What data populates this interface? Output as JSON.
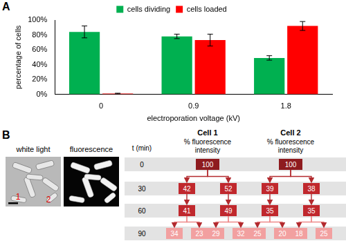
{
  "panel_labels": [
    "A",
    "B"
  ],
  "chart_data": {
    "type": "bar",
    "categories": [
      "0",
      "0.9",
      "1.8"
    ],
    "x_label": "electroporation voltage (kV)",
    "y_label": "percentage of cells",
    "ylim": [
      0,
      100
    ],
    "yticks": [
      {
        "value": 0,
        "label": "0%"
      },
      {
        "value": 20,
        "label": "20%"
      },
      {
        "value": 40,
        "label": "40%"
      },
      {
        "value": 60,
        "label": "60%"
      },
      {
        "value": 80,
        "label": "80%"
      },
      {
        "value": 100,
        "label": "100%"
      }
    ],
    "series": [
      {
        "name": "cells dividing",
        "color": "#00b050",
        "values": [
          84,
          78,
          49
        ],
        "errors": [
          8,
          3,
          3
        ]
      },
      {
        "name": "cells loaded",
        "color": "#ff0000",
        "values": [
          1,
          73,
          92
        ],
        "errors": [
          0.5,
          8,
          6
        ]
      }
    ],
    "grid": false,
    "legend": "top"
  },
  "panel_b": {
    "images": [
      {
        "caption": "white light",
        "cell_markers": [
          "1",
          "2"
        ]
      },
      {
        "caption": "fluorescence"
      }
    ],
    "time_header": "t (min)",
    "value_header": "% fluorescence intensity",
    "times": [
      0,
      30,
      60,
      90
    ],
    "cells": [
      {
        "name": "Cell 1",
        "levels": [
          [
            100
          ],
          [
            42,
            52
          ],
          [
            41,
            49
          ],
          [
            34,
            23,
            29,
            32
          ]
        ]
      },
      {
        "name": "Cell 2",
        "levels": [
          [
            100
          ],
          [
            39,
            38
          ],
          [
            35,
            35
          ],
          [
            25,
            20,
            18,
            25
          ]
        ]
      }
    ]
  }
}
